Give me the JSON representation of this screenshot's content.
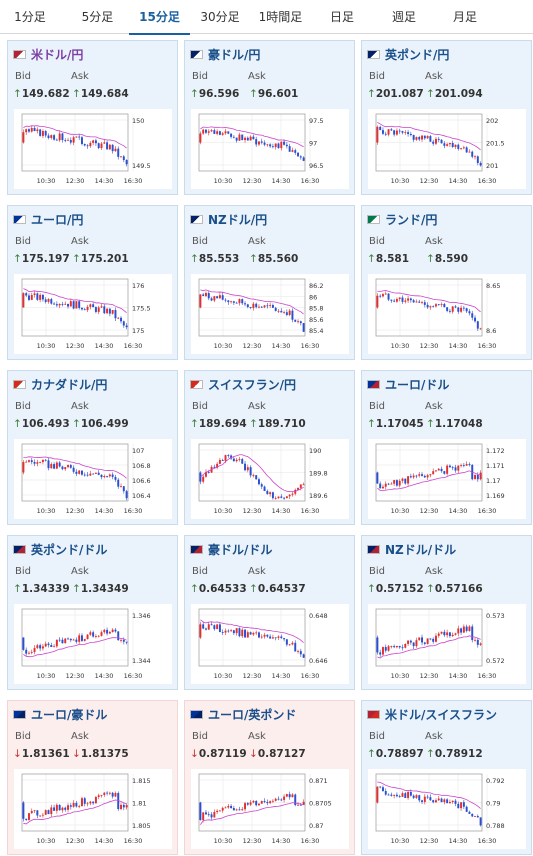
{
  "tabs": [
    "1分足",
    "5分足",
    "15分足",
    "30分足",
    "1時間足",
    "日足",
    "週足",
    "月足"
  ],
  "active_tab": 2,
  "bid_label": "Bid",
  "ask_label": "Ask",
  "x_ticks": [
    "10:30",
    "12:30",
    "14:30",
    "16:30"
  ],
  "cards": [
    {
      "title": "米ドル/円",
      "bid": "149.682",
      "ask": "149.684",
      "dir": "up",
      "ticks": [
        "150",
        "149.5"
      ],
      "trend": "down",
      "flag": "us-jp"
    },
    {
      "title": "豪ドル/円",
      "bid": "96.596",
      "ask": "96.601",
      "dir": "up",
      "ticks": [
        "97.5",
        "97",
        "96.5"
      ],
      "trend": "down",
      "flag": "au-jp"
    },
    {
      "title": "英ポンド/円",
      "bid": "201.087",
      "ask": "201.094",
      "dir": "up",
      "ticks": [
        "202",
        "201.5",
        "201"
      ],
      "trend": "down",
      "flag": "gb-jp"
    },
    {
      "title": "ユーロ/円",
      "bid": "175.197",
      "ask": "175.201",
      "dir": "up",
      "ticks": [
        "176",
        "175.5",
        "175"
      ],
      "trend": "down",
      "flag": "eu-jp"
    },
    {
      "title": "NZドル/円",
      "bid": "85.553",
      "ask": "85.560",
      "dir": "up",
      "ticks": [
        "86.2",
        "86",
        "85.8",
        "85.6",
        "85.4"
      ],
      "trend": "down",
      "flag": "nz-jp"
    },
    {
      "title": "ランド/円",
      "bid": "8.581",
      "ask": "8.590",
      "dir": "up",
      "ticks": [
        "8.65",
        "8.6"
      ],
      "trend": "down",
      "flag": "za-jp"
    },
    {
      "title": "カナダドル/円",
      "bid": "106.493",
      "ask": "106.499",
      "dir": "up",
      "ticks": [
        "107",
        "106.8",
        "106.6",
        "106.4"
      ],
      "trend": "down",
      "flag": "ca-jp"
    },
    {
      "title": "スイスフラン/円",
      "bid": "189.694",
      "ask": "189.710",
      "dir": "up",
      "ticks": [
        "190",
        "189.8",
        "189.6"
      ],
      "trend": "volatile",
      "flag": "ch-jp"
    },
    {
      "title": "ユーロ/ドル",
      "bid": "1.17045",
      "ask": "1.17048",
      "dir": "up",
      "ticks": [
        "1.172",
        "1.171",
        "1.17",
        "1.169"
      ],
      "trend": "up",
      "flag": "eu-us"
    },
    {
      "title": "英ポンド/ドル",
      "bid": "1.34339",
      "ask": "1.34349",
      "dir": "up",
      "ticks": [
        "1.346",
        "1.344"
      ],
      "trend": "up",
      "flag": "gb-us"
    },
    {
      "title": "豪ドル/ドル",
      "bid": "0.64533",
      "ask": "0.64537",
      "dir": "up",
      "ticks": [
        "0.648",
        "0.646"
      ],
      "trend": "down",
      "flag": "au-us"
    },
    {
      "title": "NZドル/ドル",
      "bid": "0.57152",
      "ask": "0.57166",
      "dir": "up",
      "ticks": [
        "0.573",
        "0.572"
      ],
      "trend": "up",
      "flag": "nz-us"
    },
    {
      "title": "ユーロ/豪ドル",
      "bid": "1.81361",
      "ask": "1.81375",
      "dir": "down",
      "ticks": [
        "1.815",
        "1.81",
        "1.805"
      ],
      "trend": "up",
      "flag": "eu-au"
    },
    {
      "title": "ユーロ/英ポンド",
      "bid": "0.87119",
      "ask": "0.87127",
      "dir": "down",
      "ticks": [
        "0.871",
        "0.8705",
        "0.87"
      ],
      "trend": "up",
      "flag": "eu-gb"
    },
    {
      "title": "米ドル/スイスフラン",
      "bid": "0.78897",
      "ask": "0.78912",
      "dir": "up",
      "ticks": [
        "0.792",
        "0.79",
        "0.788"
      ],
      "trend": "down",
      "flag": "us-ch"
    }
  ]
}
